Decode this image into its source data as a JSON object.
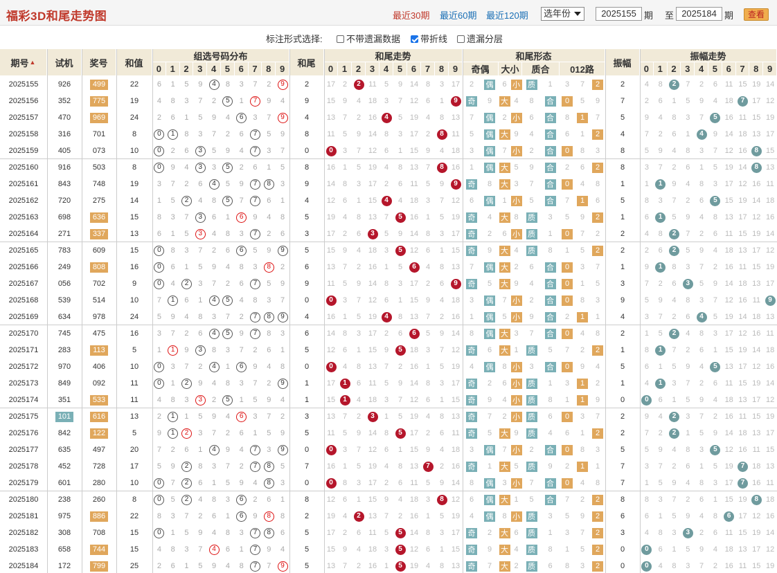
{
  "header": {
    "title": "福彩3D和尾走势图",
    "period_links": [
      "最近30期",
      "最近60期",
      "最近120期"
    ],
    "year_select": "选年份",
    "from": "2025155",
    "qi": "期",
    "zhi": "至",
    "to": "2025184",
    "view_button": "查看"
  },
  "options": {
    "label": "标注形式选择:",
    "items": [
      {
        "label": "不带遗漏数据",
        "checked": false
      },
      {
        "label": "带折线",
        "checked": true
      },
      {
        "label": "遗漏分层",
        "checked": false
      }
    ]
  },
  "columns": {
    "issue": "期号",
    "trial": "试机",
    "prize": "奖号",
    "sum": "和值",
    "group": "组选号码分布",
    "tail": "和尾",
    "tail_trend": "和尾走势",
    "tail_form": "和尾形态",
    "form_sub": [
      "奇偶",
      "大小",
      "质合",
      "012路"
    ],
    "amp": "振幅",
    "amp_trend": "振幅走势",
    "digits": [
      "0",
      "1",
      "2",
      "3",
      "4",
      "5",
      "6",
      "7",
      "8",
      "9"
    ]
  },
  "rows": [
    {
      "issue": "2025155",
      "trial": "926",
      "prize": "499",
      "sum": "22",
      "tail": "2",
      "amp": "2"
    },
    {
      "issue": "2025156",
      "trial": "352",
      "prize": "775",
      "sum": "19",
      "tail": "9",
      "amp": "7"
    },
    {
      "issue": "2025157",
      "trial": "470",
      "prize": "969",
      "sum": "24",
      "tail": "4",
      "amp": "5"
    },
    {
      "issue": "2025158",
      "trial": "316",
      "prize": "701",
      "sum": "8",
      "tail": "8",
      "amp": "4"
    },
    {
      "issue": "2025159",
      "trial": "405",
      "prize": "073",
      "sum": "10",
      "tail": "0",
      "amp": "8"
    },
    {
      "issue": "2025160",
      "trial": "916",
      "prize": "503",
      "sum": "8",
      "tail": "8",
      "amp": "8"
    },
    {
      "issue": "2025161",
      "trial": "843",
      "prize": "748",
      "sum": "19",
      "tail": "9",
      "amp": "1"
    },
    {
      "issue": "2025162",
      "trial": "720",
      "prize": "275",
      "sum": "14",
      "tail": "4",
      "amp": "5"
    },
    {
      "issue": "2025163",
      "trial": "698",
      "prize": "636",
      "sum": "15",
      "tail": "5",
      "amp": "1"
    },
    {
      "issue": "2025164",
      "trial": "271",
      "prize": "337",
      "sum": "13",
      "tail": "3",
      "amp": "2"
    },
    {
      "issue": "2025165",
      "trial": "783",
      "prize": "609",
      "sum": "15",
      "tail": "5",
      "amp": "2"
    },
    {
      "issue": "2025166",
      "trial": "249",
      "prize": "808",
      "sum": "16",
      "tail": "6",
      "amp": "1"
    },
    {
      "issue": "2025167",
      "trial": "056",
      "prize": "702",
      "sum": "9",
      "tail": "9",
      "amp": "3"
    },
    {
      "issue": "2025168",
      "trial": "539",
      "prize": "514",
      "sum": "10",
      "tail": "0",
      "amp": "9"
    },
    {
      "issue": "2025169",
      "trial": "634",
      "prize": "978",
      "sum": "24",
      "tail": "4",
      "amp": "4"
    },
    {
      "issue": "2025170",
      "trial": "745",
      "prize": "475",
      "sum": "16",
      "tail": "6",
      "amp": "2"
    },
    {
      "issue": "2025171",
      "trial": "283",
      "prize": "113",
      "sum": "5",
      "tail": "5",
      "amp": "1"
    },
    {
      "issue": "2025172",
      "trial": "970",
      "prize": "406",
      "sum": "10",
      "tail": "0",
      "amp": "5"
    },
    {
      "issue": "2025173",
      "trial": "849",
      "prize": "092",
      "sum": "11",
      "tail": "1",
      "amp": "1"
    },
    {
      "issue": "2025174",
      "trial": "351",
      "prize": "533",
      "sum": "11",
      "tail": "1",
      "amp": "0"
    },
    {
      "issue": "2025175",
      "trial": "101",
      "prize": "616",
      "sum": "13",
      "tail": "3",
      "amp": "2"
    },
    {
      "issue": "2025176",
      "trial": "842",
      "prize": "122",
      "sum": "5",
      "tail": "5",
      "amp": "2"
    },
    {
      "issue": "2025177",
      "trial": "635",
      "prize": "497",
      "sum": "20",
      "tail": "0",
      "amp": "5"
    },
    {
      "issue": "2025178",
      "trial": "452",
      "prize": "728",
      "sum": "17",
      "tail": "7",
      "amp": "7"
    },
    {
      "issue": "2025179",
      "trial": "601",
      "prize": "280",
      "sum": "10",
      "tail": "0",
      "amp": "7"
    },
    {
      "issue": "2025180",
      "trial": "238",
      "prize": "260",
      "sum": "8",
      "tail": "8",
      "amp": "8"
    },
    {
      "issue": "2025181",
      "trial": "975",
      "prize": "886",
      "sum": "22",
      "tail": "2",
      "amp": "6"
    },
    {
      "issue": "2025182",
      "trial": "308",
      "prize": "708",
      "sum": "15",
      "tail": "5",
      "amp": "3"
    },
    {
      "issue": "2025183",
      "trial": "658",
      "prize": "744",
      "sum": "15",
      "tail": "5",
      "amp": "0"
    },
    {
      "issue": "2025184",
      "trial": "172",
      "prize": "799",
      "sum": "25",
      "tail": "5",
      "amp": "0"
    }
  ],
  "labels": {
    "odd": "奇",
    "even": "偶",
    "big": "大",
    "small": "小",
    "prime": "质",
    "comp": "合"
  },
  "colors": {
    "red_ball": "#b5162b",
    "teal_ball": "#6f9b9e",
    "orange_tag": "#e0a75c",
    "teal_tag": "#7ab0b6",
    "header_bg": "#f1ead8",
    "title_red": "#c0392b"
  }
}
